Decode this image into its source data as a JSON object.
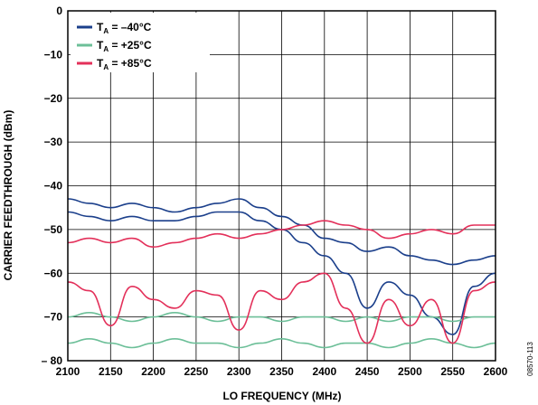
{
  "chart_data": {
    "type": "line",
    "title": "",
    "xlabel": "LO FREQUENCY (MHz)",
    "ylabel": "CARRIER FEEDTHROUGH (dBm)",
    "xlim": [
      2100,
      2600
    ],
    "ylim": [
      -80,
      0
    ],
    "x_ticks": [
      2100,
      2150,
      2200,
      2250,
      2300,
      2350,
      2400,
      2450,
      2500,
      2550,
      2600
    ],
    "x_tick_labels": [
      "2100",
      "2150",
      "2200",
      "2250",
      "2300",
      "2350",
      "2400",
      "2450",
      "2500",
      "2550",
      "2600"
    ],
    "y_ticks": [
      0,
      -10,
      -20,
      -30,
      -40,
      -50,
      -60,
      -70,
      -80
    ],
    "y_tick_labels": [
      "0",
      "−10",
      "−20",
      "−30",
      "−40",
      "−50",
      "−60",
      "−70",
      "– 80"
    ],
    "grid": true,
    "legend_position": "top-left",
    "figure_id": "08570-113",
    "x": [
      2100,
      2125,
      2150,
      2175,
      2200,
      2225,
      2250,
      2275,
      2300,
      2325,
      2350,
      2375,
      2400,
      2425,
      2450,
      2475,
      2500,
      2525,
      2550,
      2575,
      2600
    ],
    "series": [
      {
        "legend_main": "T",
        "legend_sub": "A",
        "legend_value": " = –40°C",
        "color": "#1b3f8b",
        "traces": 2,
        "values": [
          [
            -43,
            -44,
            -45,
            -44,
            -45,
            -46,
            -45,
            -44,
            -43,
            -45,
            -47,
            -49,
            -52,
            -53,
            -55,
            -54,
            -56,
            -57,
            -58,
            -57,
            -56
          ],
          [
            -46,
            -47,
            -48,
            -47,
            -48,
            -48,
            -47,
            -46,
            -46,
            -48,
            -50,
            -53,
            -56,
            -60,
            -68,
            -62,
            -65,
            -70,
            -74,
            -63,
            -60
          ]
        ]
      },
      {
        "legend_main": "T",
        "legend_sub": "A",
        "legend_value": " = +25°C",
        "color": "#6cbf98",
        "traces": 2,
        "values": [
          [
            -70,
            -69,
            -70,
            -71,
            -70,
            -69,
            -70,
            -71,
            -70,
            -70,
            -71,
            -70,
            -70,
            -71,
            -70,
            -71,
            -70,
            -70,
            -71,
            -70,
            -70
          ],
          [
            -76,
            -75,
            -76,
            -77,
            -76,
            -75,
            -76,
            -76,
            -77,
            -76,
            -75,
            -76,
            -77,
            -76,
            -76,
            -77,
            -76,
            -75,
            -76,
            -77,
            -76
          ]
        ]
      },
      {
        "legend_main": "T",
        "legend_sub": "A",
        "legend_value": " = +85°C",
        "color": "#e3305a",
        "traces": 2,
        "values": [
          [
            -53,
            -52,
            -53,
            -52,
            -54,
            -53,
            -52,
            -51,
            -52,
            -51,
            -50,
            -49,
            -48,
            -49,
            -50,
            -52,
            -51,
            -50,
            -51,
            -49,
            -49
          ],
          [
            -62,
            -64,
            -72,
            -63,
            -66,
            -68,
            -64,
            -65,
            -73,
            -64,
            -66,
            -62,
            -60,
            -68,
            -76,
            -66,
            -72,
            -66,
            -76,
            -64,
            -62
          ]
        ]
      }
    ]
  }
}
